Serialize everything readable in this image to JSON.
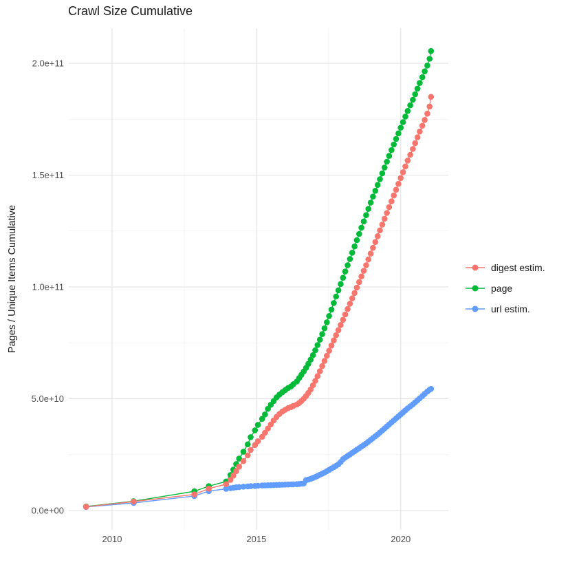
{
  "chart_data": {
    "type": "scatter",
    "title": "Crawl Size Cumulative",
    "xlabel": "",
    "ylabel": "Pages / Unique Items Cumulative",
    "legend_position": "right",
    "grid": true,
    "x_range": [
      2008.5,
      2021.65
    ],
    "y_range_e9": [
      -8.6,
      215.7
    ],
    "x_ticks": [
      2010,
      2015,
      2020
    ],
    "x_tick_labels": [
      "2010",
      "2015",
      "2020"
    ],
    "x_minor_ticks": [
      2012.5,
      2017.5
    ],
    "y_ticks_e9": [
      0,
      50,
      100,
      150,
      200
    ],
    "y_tick_labels": [
      "0.0e+00",
      "5.0e+10",
      "1.0e+11",
      "1.5e+11",
      "2.0e+11"
    ],
    "y_minor_ticks_e9": [
      25,
      75,
      125,
      175
    ],
    "x": [
      2009.1,
      2010.75,
      2012.85,
      2013.35,
      2013.95,
      2014.1,
      2014.2,
      2014.3,
      2014.4,
      2014.55,
      2014.7,
      2014.8,
      2014.95,
      2015.05,
      2015.2,
      2015.3,
      2015.4,
      2015.5,
      2015.6,
      2015.7,
      2015.8,
      2015.9,
      2016.0,
      2016.1,
      2016.2,
      2016.28,
      2016.4,
      2016.48,
      2016.56,
      2016.64,
      2016.72,
      2016.8,
      2016.88,
      2016.96,
      2017.04,
      2017.12,
      2017.2,
      2017.28,
      2017.36,
      2017.44,
      2017.52,
      2017.6,
      2017.68,
      2017.76,
      2017.84,
      2017.92,
      2018.0,
      2018.08,
      2018.16,
      2018.24,
      2018.32,
      2018.4,
      2018.48,
      2018.56,
      2018.64,
      2018.72,
      2018.8,
      2018.88,
      2018.96,
      2019.04,
      2019.12,
      2019.2,
      2019.28,
      2019.36,
      2019.44,
      2019.52,
      2019.6,
      2019.68,
      2019.76,
      2019.84,
      2019.92,
      2020.0,
      2020.08,
      2020.16,
      2020.24,
      2020.33,
      2020.42,
      2020.5,
      2020.58,
      2020.66,
      2020.75,
      2020.83,
      2020.92,
      2021.0,
      2021.05
    ],
    "series": [
      {
        "name": "digest estim.",
        "color": "#F8766D",
        "values_e9": [
          1.7,
          4.0,
          7.2,
          9.8,
          11.8,
          13.7,
          15.6,
          17.6,
          19.6,
          22.1,
          24.7,
          27.1,
          29.3,
          31.0,
          33.0,
          34.8,
          36.7,
          38.5,
          40.3,
          41.9,
          43.2,
          44.3,
          45.1,
          45.8,
          46.3,
          46.8,
          47.4,
          48.1,
          49.0,
          50.0,
          51.2,
          52.6,
          54.2,
          56.0,
          58.0,
          60.1,
          62.3,
          64.6,
          66.9,
          69.2,
          71.5,
          73.8,
          76.1,
          78.4,
          80.7,
          83.0,
          85.3,
          87.7,
          90.1,
          92.5,
          94.9,
          97.3,
          99.7,
          102.2,
          104.7,
          107.2,
          109.7,
          112.3,
          114.9,
          117.5,
          120.1,
          122.7,
          125.3,
          127.9,
          130.5,
          133.1,
          135.7,
          138.3,
          140.9,
          143.5,
          146.1,
          148.7,
          151.3,
          153.9,
          156.5,
          159.1,
          161.7,
          164.3,
          166.9,
          169.5,
          172.1,
          174.7,
          177.5,
          180.7,
          185.0
        ]
      },
      {
        "name": "page",
        "color": "#00BA38",
        "values_e9": [
          1.8,
          4.2,
          8.6,
          10.9,
          13.0,
          15.9,
          18.3,
          20.8,
          23.2,
          26.3,
          29.6,
          32.8,
          35.9,
          38.3,
          41.0,
          43.0,
          45.5,
          47.3,
          49.0,
          50.6,
          51.9,
          52.9,
          53.9,
          54.8,
          55.5,
          56.5,
          57.7,
          59.2,
          60.7,
          62.2,
          63.8,
          65.6,
          67.5,
          69.5,
          71.7,
          74.0,
          76.4,
          78.9,
          81.5,
          84.2,
          87.0,
          89.9,
          92.8,
          95.7,
          98.5,
          101.3,
          104.1,
          106.9,
          109.7,
          112.5,
          115.3,
          118.1,
          120.9,
          123.7,
          126.5,
          129.3,
          132.1,
          134.9,
          137.7,
          140.4,
          143.0,
          145.6,
          148.2,
          150.8,
          153.4,
          156.0,
          158.6,
          161.2,
          163.7,
          166.2,
          168.7,
          171.2,
          173.7,
          176.2,
          178.7,
          181.2,
          183.7,
          186.2,
          188.7,
          191.2,
          193.8,
          196.4,
          199.0,
          202.0,
          205.5
        ]
      },
      {
        "name": "url estim.",
        "color": "#619CFF",
        "values_e9": [
          1.6,
          3.4,
          6.5,
          8.7,
          9.7,
          10.0,
          10.2,
          10.4,
          10.5,
          10.7,
          10.8,
          10.9,
          11.0,
          11.1,
          11.2,
          11.25,
          11.3,
          11.35,
          11.4,
          11.45,
          11.5,
          11.55,
          11.6,
          11.65,
          11.7,
          11.75,
          11.8,
          11.9,
          12.0,
          12.1,
          13.6,
          13.9,
          14.2,
          14.6,
          15.0,
          15.5,
          16.0,
          16.5,
          17.0,
          17.6,
          18.2,
          18.8,
          19.4,
          20.0,
          20.7,
          21.7,
          23.0,
          23.7,
          24.4,
          25.1,
          25.8,
          26.5,
          27.2,
          27.9,
          28.6,
          29.3,
          30.0,
          30.8,
          31.6,
          32.4,
          33.2,
          34.0,
          34.9,
          35.8,
          36.7,
          37.6,
          38.5,
          39.4,
          40.3,
          41.2,
          42.1,
          43.0,
          43.9,
          44.8,
          45.7,
          46.6,
          47.5,
          48.4,
          49.3,
          50.2,
          51.2,
          52.2,
          53.2,
          54.0,
          54.4
        ]
      }
    ],
    "draw_order": [
      1,
      2,
      0
    ]
  }
}
